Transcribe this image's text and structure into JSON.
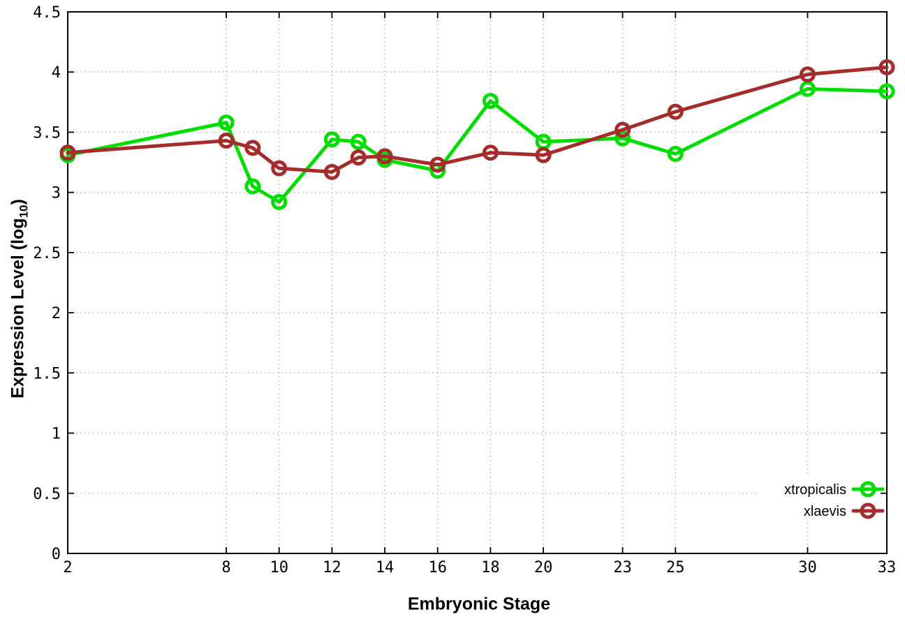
{
  "chart_data": {
    "type": "line",
    "title": "",
    "xlabel": "Embryonic Stage",
    "ylabel_full": "Expression Level (log10)",
    "ylabel": {
      "prefix": "Expression Level (log",
      "subscript": "10",
      "suffix": ")"
    },
    "xlim": [
      2,
      33
    ],
    "ylim": [
      0,
      4.5
    ],
    "grid": true,
    "legend_position": "inside-bottom-right",
    "x": [
      2,
      8,
      9,
      10,
      12,
      13,
      14,
      16,
      18,
      20,
      23,
      25,
      30,
      33
    ],
    "xtick_values": [
      2,
      8,
      10,
      12,
      14,
      16,
      18,
      20,
      23,
      25,
      30,
      33
    ],
    "xtick_labels": [
      "2",
      "8",
      "10",
      "12",
      "14",
      "16",
      "18",
      "20",
      "23",
      "25",
      "30",
      "33"
    ],
    "ytick_values": [
      0,
      0.5,
      1,
      1.5,
      2,
      2.5,
      3,
      3.5,
      4,
      4.5
    ],
    "ytick_labels": [
      "0",
      "0.5",
      "1",
      "1.5",
      "2",
      "2.5",
      "3",
      "3.5",
      "4",
      "4.5"
    ],
    "series": [
      {
        "name": "xtropicalis",
        "color": "#00dd00",
        "marker": "open-circle",
        "values": [
          3.31,
          3.58,
          3.05,
          2.92,
          3.44,
          3.42,
          3.27,
          3.18,
          3.76,
          3.42,
          3.45,
          3.32,
          3.86,
          3.84
        ]
      },
      {
        "name": "xlaevis",
        "color": "#a62b2b",
        "marker": "open-circle",
        "values": [
          3.33,
          3.43,
          3.37,
          3.2,
          3.17,
          3.29,
          3.3,
          3.23,
          3.33,
          3.31,
          3.52,
          3.67,
          3.98,
          4.04
        ]
      }
    ],
    "colors": {
      "grid": "#b4b4b4",
      "axis": "#000000",
      "background": "#ffffff"
    }
  }
}
